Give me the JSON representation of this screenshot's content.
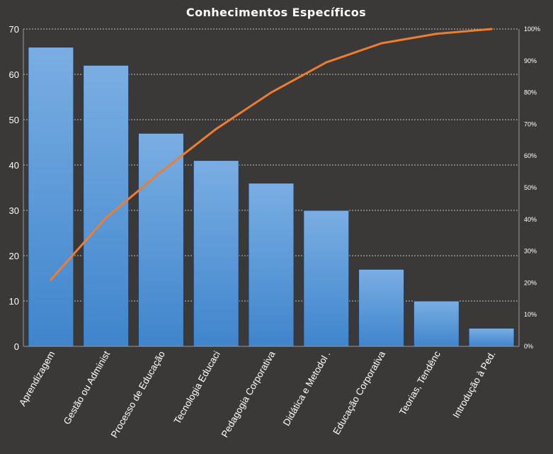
{
  "chart_data": {
    "type": "bar",
    "title": "Conhecimentos Específicos",
    "categories": [
      "Aprendizagem",
      "Gestão ou Administ",
      "Processo de Educação",
      "Tecnologia Educaci",
      "Pedagogia Corporativa",
      "Didática e Metodol .",
      "Educação Corporativa",
      "Teorias, Tendênc",
      "Introdução à Ped."
    ],
    "series": [
      {
        "type": "bar",
        "values": [
          66,
          62,
          47,
          41,
          36,
          30,
          17,
          10,
          4
        ],
        "color": "#5b9bd5"
      },
      {
        "type": "line",
        "axis": "right",
        "values": [
          21,
          40.5,
          55,
          68.5,
          80,
          89.5,
          95.5,
          98.5,
          100
        ],
        "unit": "%",
        "color": "#ed7d31"
      }
    ],
    "ylim": [
      0,
      70
    ],
    "yticks": [
      "0",
      "10",
      "20",
      "30",
      "40",
      "50",
      "60",
      "70"
    ],
    "y2lim": [
      0,
      100
    ],
    "y2ticks": [
      "0%",
      "10%",
      "20%",
      "30%",
      "40%",
      "50%",
      "60%",
      "70%",
      "80%",
      "90%",
      "100%"
    ],
    "xlabel": "",
    "ylabel": "",
    "grid": true,
    "legend": "none",
    "background": "#3b3838"
  }
}
